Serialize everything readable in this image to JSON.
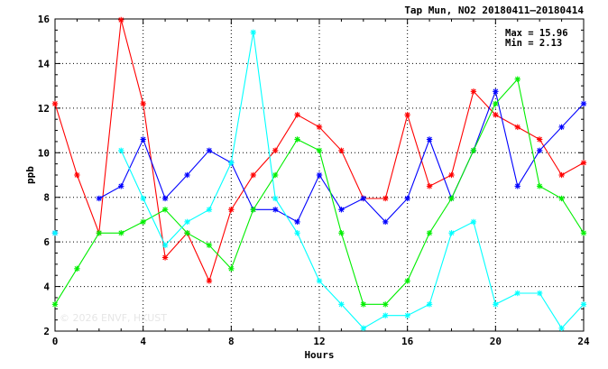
{
  "chart_data": {
    "type": "line",
    "title": "Tap Mun, NO2 20180411–20180414",
    "stats": {
      "max_label": "Max = 15.96",
      "min_label": "Min =  2.13"
    },
    "watermark": "© 2026  ENVF, HKUST",
    "xlabel": "Hours",
    "ylabel": "ppb",
    "xlim": [
      0,
      24
    ],
    "ylim": [
      2,
      16
    ],
    "xticks": [
      0,
      4,
      8,
      12,
      16,
      20,
      24
    ],
    "yticks": [
      2,
      4,
      6,
      8,
      10,
      12,
      14,
      16
    ],
    "grid": true,
    "x": [
      0,
      1,
      2,
      3,
      4,
      5,
      6,
      7,
      8,
      9,
      10,
      11,
      12,
      13,
      14,
      15,
      16,
      17,
      18,
      19,
      20,
      21,
      22,
      23,
      24
    ],
    "series": [
      {
        "color": "#ff0000",
        "values": [
          12.2,
          9.0,
          6.4,
          15.96,
          12.2,
          5.3,
          6.4,
          4.25,
          7.45,
          9.0,
          10.1,
          11.7,
          11.15,
          10.1,
          7.95,
          7.95,
          11.7,
          8.5,
          9.0,
          12.75,
          11.7,
          11.15,
          10.6,
          9.0,
          9.55
        ]
      },
      {
        "color": "#0000ff",
        "values": [
          6.4,
          null,
          7.95,
          8.5,
          10.6,
          7.95,
          9.0,
          10.1,
          9.55,
          7.45,
          7.45,
          6.9,
          9.0,
          7.45,
          7.95,
          6.9,
          7.95,
          10.6,
          7.95,
          10.1,
          12.75,
          8.5,
          10.1,
          11.15,
          12.2
        ]
      },
      {
        "color": "#00ee00",
        "values": [
          3.2,
          4.8,
          6.4,
          6.4,
          6.9,
          7.45,
          6.4,
          5.85,
          4.8,
          7.45,
          9.0,
          10.6,
          10.1,
          6.4,
          3.2,
          3.2,
          4.25,
          6.4,
          7.95,
          10.1,
          12.2,
          13.3,
          8.5,
          7.95,
          6.4
        ]
      },
      {
        "color": "#00ffff",
        "values": [
          6.4,
          null,
          null,
          10.1,
          7.95,
          5.85,
          6.9,
          7.45,
          9.55,
          15.4,
          7.95,
          6.4,
          4.25,
          3.2,
          2.13,
          2.7,
          2.7,
          3.2,
          6.4,
          6.9,
          3.2,
          3.7,
          3.7,
          2.13,
          3.2
        ]
      }
    ]
  }
}
